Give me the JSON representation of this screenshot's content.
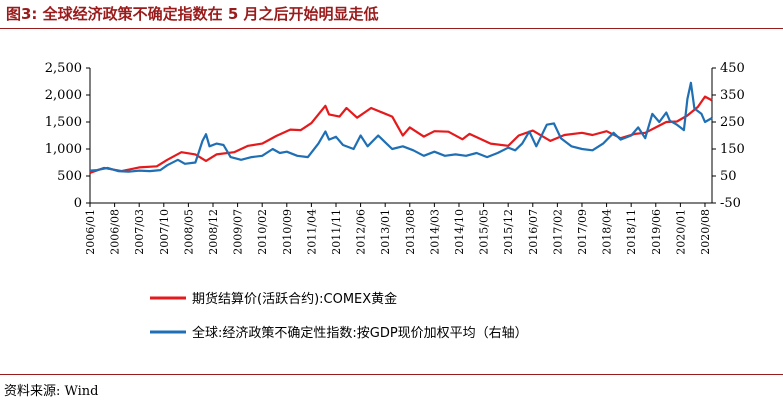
{
  "title": "图3:  全球经济政策不确定指数在 5 月之后开始明显走低",
  "source": "资料来源:  Wind",
  "chart_data": {
    "type": "line",
    "title": "图3:  全球经济政策不确定指数在 5 月之后开始明显走低",
    "xlabel": "",
    "ylabel_left": "",
    "ylabel_right": "",
    "ylim_left": [
      0,
      2500
    ],
    "ylim_right": [
      -50,
      450
    ],
    "yticks_left": [
      "0",
      "500",
      "1,000",
      "1,500",
      "2,000",
      "2,500"
    ],
    "yticks_right": [
      "-50",
      "50",
      "150",
      "250",
      "350",
      "450"
    ],
    "x_tick_labels": [
      "2006/01",
      "2006/08",
      "2007/03",
      "2007/10",
      "2008/05",
      "2008/12",
      "2009/07",
      "2010/02",
      "2010/09",
      "2011/04",
      "2011/11",
      "2012/06",
      "2013/01",
      "2013/08",
      "2014/03",
      "2014/10",
      "2015/05",
      "2015/12",
      "2016/07",
      "2017/02",
      "2017/09",
      "2018/04",
      "2018/11",
      "2019/06",
      "2020/01",
      "2020/08"
    ],
    "x_start": "2006/01",
    "x_end": "2020/10",
    "grid": false,
    "legend_placement": "bottom",
    "series": [
      {
        "name": "期货结算价(活跃合约):COMEX黄金",
        "axis": "left",
        "color": "#e41a1c",
        "points": [
          [
            "2006/01",
            560
          ],
          [
            "2006/05",
            650
          ],
          [
            "2006/10",
            590
          ],
          [
            "2007/03",
            660
          ],
          [
            "2007/08",
            680
          ],
          [
            "2007/11",
            800
          ],
          [
            "2008/03",
            940
          ],
          [
            "2008/07",
            900
          ],
          [
            "2008/10",
            780
          ],
          [
            "2009/01",
            900
          ],
          [
            "2009/06",
            940
          ],
          [
            "2009/10",
            1060
          ],
          [
            "2010/02",
            1100
          ],
          [
            "2010/06",
            1240
          ],
          [
            "2010/10",
            1360
          ],
          [
            "2011/01",
            1350
          ],
          [
            "2011/04",
            1480
          ],
          [
            "2011/08",
            1800
          ],
          [
            "2011/09",
            1640
          ],
          [
            "2011/12",
            1600
          ],
          [
            "2012/02",
            1760
          ],
          [
            "2012/05",
            1580
          ],
          [
            "2012/09",
            1760
          ],
          [
            "2012/12",
            1680
          ],
          [
            "2013/03",
            1600
          ],
          [
            "2013/06",
            1250
          ],
          [
            "2013/08",
            1400
          ],
          [
            "2013/12",
            1230
          ],
          [
            "2014/03",
            1330
          ],
          [
            "2014/07",
            1320
          ],
          [
            "2014/11",
            1180
          ],
          [
            "2015/01",
            1280
          ],
          [
            "2015/07",
            1100
          ],
          [
            "2015/12",
            1060
          ],
          [
            "2016/03",
            1250
          ],
          [
            "2016/07",
            1340
          ],
          [
            "2016/12",
            1150
          ],
          [
            "2017/04",
            1260
          ],
          [
            "2017/09",
            1300
          ],
          [
            "2017/12",
            1260
          ],
          [
            "2018/04",
            1330
          ],
          [
            "2018/08",
            1200
          ],
          [
            "2018/12",
            1280
          ],
          [
            "2019/03",
            1300
          ],
          [
            "2019/06",
            1400
          ],
          [
            "2019/09",
            1500
          ],
          [
            "2019/12",
            1510
          ],
          [
            "2020/03",
            1620
          ],
          [
            "2020/06",
            1780
          ],
          [
            "2020/08",
            1970
          ],
          [
            "2020/10",
            1900
          ]
        ]
      },
      {
        "name": "全球:经济政策不确定性指数:按GDP现价加权平均（右轴）",
        "axis": "right",
        "color": "#1f6fb5",
        "points": [
          [
            "2006/01",
            70
          ],
          [
            "2006/03",
            72
          ],
          [
            "2006/06",
            80
          ],
          [
            "2006/09",
            68
          ],
          [
            "2006/12",
            66
          ],
          [
            "2007/03",
            70
          ],
          [
            "2007/06",
            68
          ],
          [
            "2007/09",
            72
          ],
          [
            "2007/11",
            90
          ],
          [
            "2008/02",
            110
          ],
          [
            "2008/04",
            95
          ],
          [
            "2008/07",
            100
          ],
          [
            "2008/09",
            180
          ],
          [
            "2008/10",
            205
          ],
          [
            "2008/11",
            160
          ],
          [
            "2009/01",
            170
          ],
          [
            "2009/03",
            165
          ],
          [
            "2009/05",
            120
          ],
          [
            "2009/08",
            110
          ],
          [
            "2009/11",
            120
          ],
          [
            "2010/02",
            125
          ],
          [
            "2010/05",
            150
          ],
          [
            "2010/07",
            135
          ],
          [
            "2010/09",
            140
          ],
          [
            "2010/12",
            125
          ],
          [
            "2011/03",
            120
          ],
          [
            "2011/06",
            170
          ],
          [
            "2011/08",
            215
          ],
          [
            "2011/09",
            185
          ],
          [
            "2011/11",
            195
          ],
          [
            "2012/01",
            165
          ],
          [
            "2012/04",
            150
          ],
          [
            "2012/06",
            200
          ],
          [
            "2012/08",
            160
          ],
          [
            "2012/11",
            200
          ],
          [
            "2013/01",
            175
          ],
          [
            "2013/03",
            150
          ],
          [
            "2013/06",
            160
          ],
          [
            "2013/09",
            145
          ],
          [
            "2013/12",
            125
          ],
          [
            "2014/03",
            140
          ],
          [
            "2014/06",
            125
          ],
          [
            "2014/09",
            130
          ],
          [
            "2014/12",
            125
          ],
          [
            "2015/03",
            135
          ],
          [
            "2015/06",
            120
          ],
          [
            "2015/09",
            135
          ],
          [
            "2015/12",
            155
          ],
          [
            "2016/02",
            145
          ],
          [
            "2016/04",
            170
          ],
          [
            "2016/06",
            215
          ],
          [
            "2016/08",
            160
          ],
          [
            "2016/11",
            240
          ],
          [
            "2017/01",
            245
          ],
          [
            "2017/03",
            190
          ],
          [
            "2017/06",
            160
          ],
          [
            "2017/09",
            150
          ],
          [
            "2017/12",
            145
          ],
          [
            "2018/03",
            170
          ],
          [
            "2018/06",
            210
          ],
          [
            "2018/08",
            185
          ],
          [
            "2018/11",
            200
          ],
          [
            "2019/01",
            230
          ],
          [
            "2019/03",
            190
          ],
          [
            "2019/05",
            280
          ],
          [
            "2019/07",
            250
          ],
          [
            "2019/09",
            285
          ],
          [
            "2019/10",
            255
          ],
          [
            "2019/12",
            240
          ],
          [
            "2020/02",
            220
          ],
          [
            "2020/03",
            335
          ],
          [
            "2020/04",
            395
          ],
          [
            "2020/05",
            300
          ],
          [
            "2020/07",
            280
          ],
          [
            "2020/08",
            250
          ],
          [
            "2020/10",
            265
          ]
        ]
      }
    ]
  }
}
